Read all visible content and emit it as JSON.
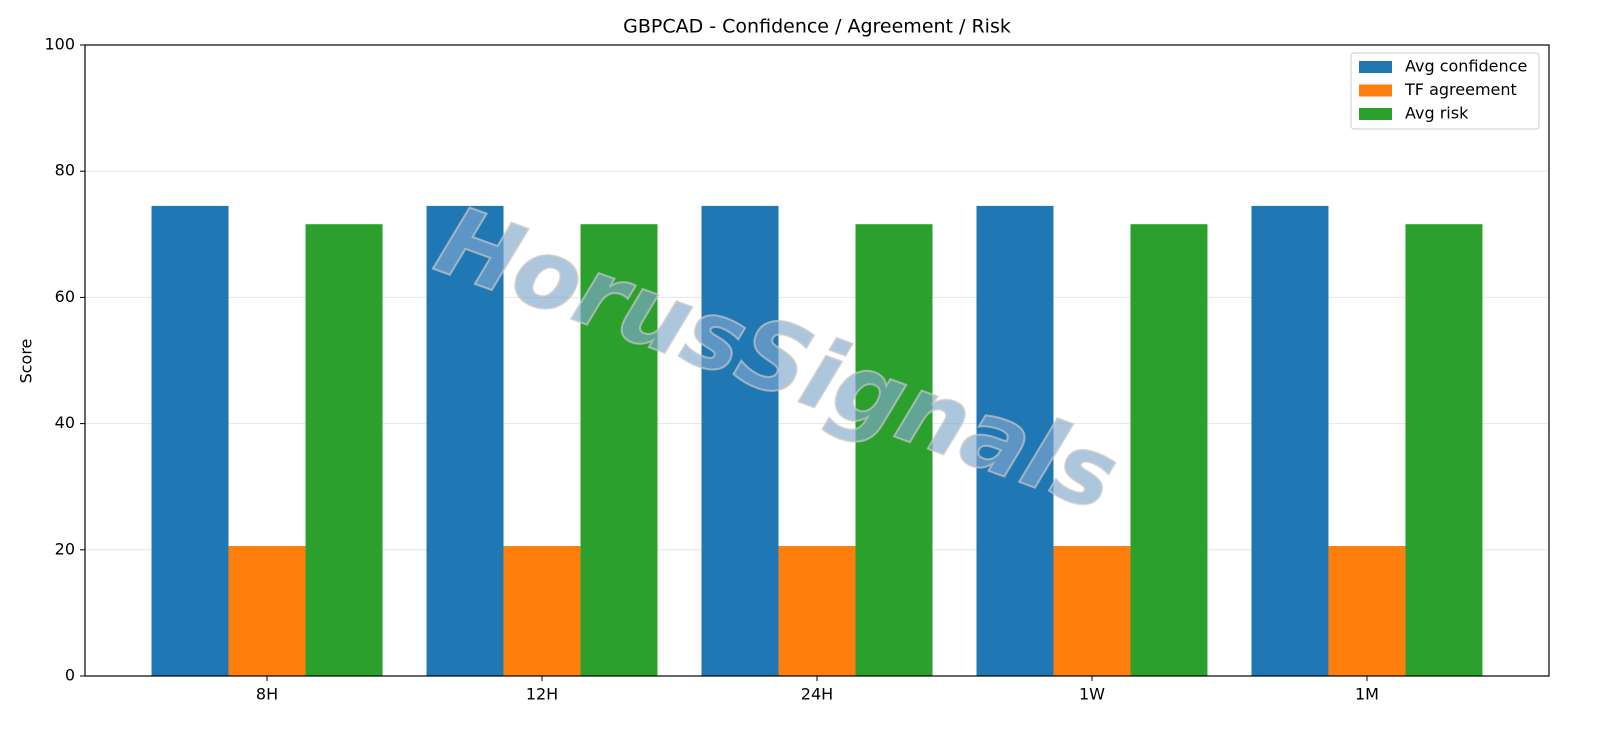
{
  "chart_data": {
    "type": "bar",
    "title": "GBPCAD - Confidence / Agreement / Risk",
    "y_label": "Score",
    "watermark": "HorusSignals",
    "categories": [
      "8H",
      "12H",
      "24H",
      "1W",
      "1M"
    ],
    "series": [
      {
        "name": "Avg confidence",
        "color": "#1f77b4",
        "values": [
          74.5,
          74.5,
          74.5,
          74.5,
          74.5
        ]
      },
      {
        "name": "TF agreement",
        "color": "#ff7f0e",
        "values": [
          20.6,
          20.6,
          20.6,
          20.6,
          20.6
        ]
      },
      {
        "name": "Avg risk",
        "color": "#2ca02c",
        "values": [
          71.6,
          71.6,
          71.6,
          71.6,
          71.6
        ]
      }
    ],
    "ylim": [
      0,
      100
    ],
    "yticks": [
      0,
      20,
      40,
      60,
      80,
      100
    ],
    "grid": true,
    "legend": "upper right"
  }
}
